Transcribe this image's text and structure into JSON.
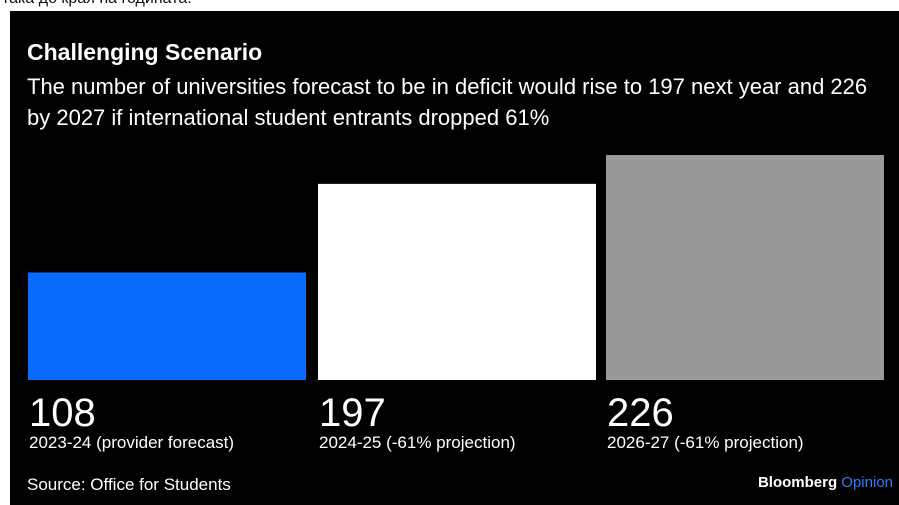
{
  "top_caption": "така до края на годината.",
  "title": "Challenging Scenario",
  "subtitle": "The number of universities forecast to be in deficit would rise to 197 next year and 226 by 2027 if international student entrants dropped 61%",
  "source": "Source: Office for Students",
  "brand": {
    "name": "Bloomberg",
    "section": "Opinion"
  },
  "colors": {
    "background": "#000000",
    "text": "#ffffff",
    "brand_accent": "#2f7bff"
  },
  "chart_data": {
    "type": "bar",
    "title": "Challenging Scenario",
    "categories": [
      "2023-24 (provider forecast)",
      "2024-25 (-61% projection)",
      "2026-27 (-61% projection)"
    ],
    "values": [
      108,
      197,
      226
    ],
    "value_labels": [
      "108",
      "197",
      "226"
    ],
    "bar_colors": [
      "#0a6cff",
      "#ffffff",
      "#999999"
    ],
    "ylim": [
      0,
      226
    ],
    "xlabel": "",
    "ylabel": "",
    "grid": false,
    "legend": "none"
  }
}
